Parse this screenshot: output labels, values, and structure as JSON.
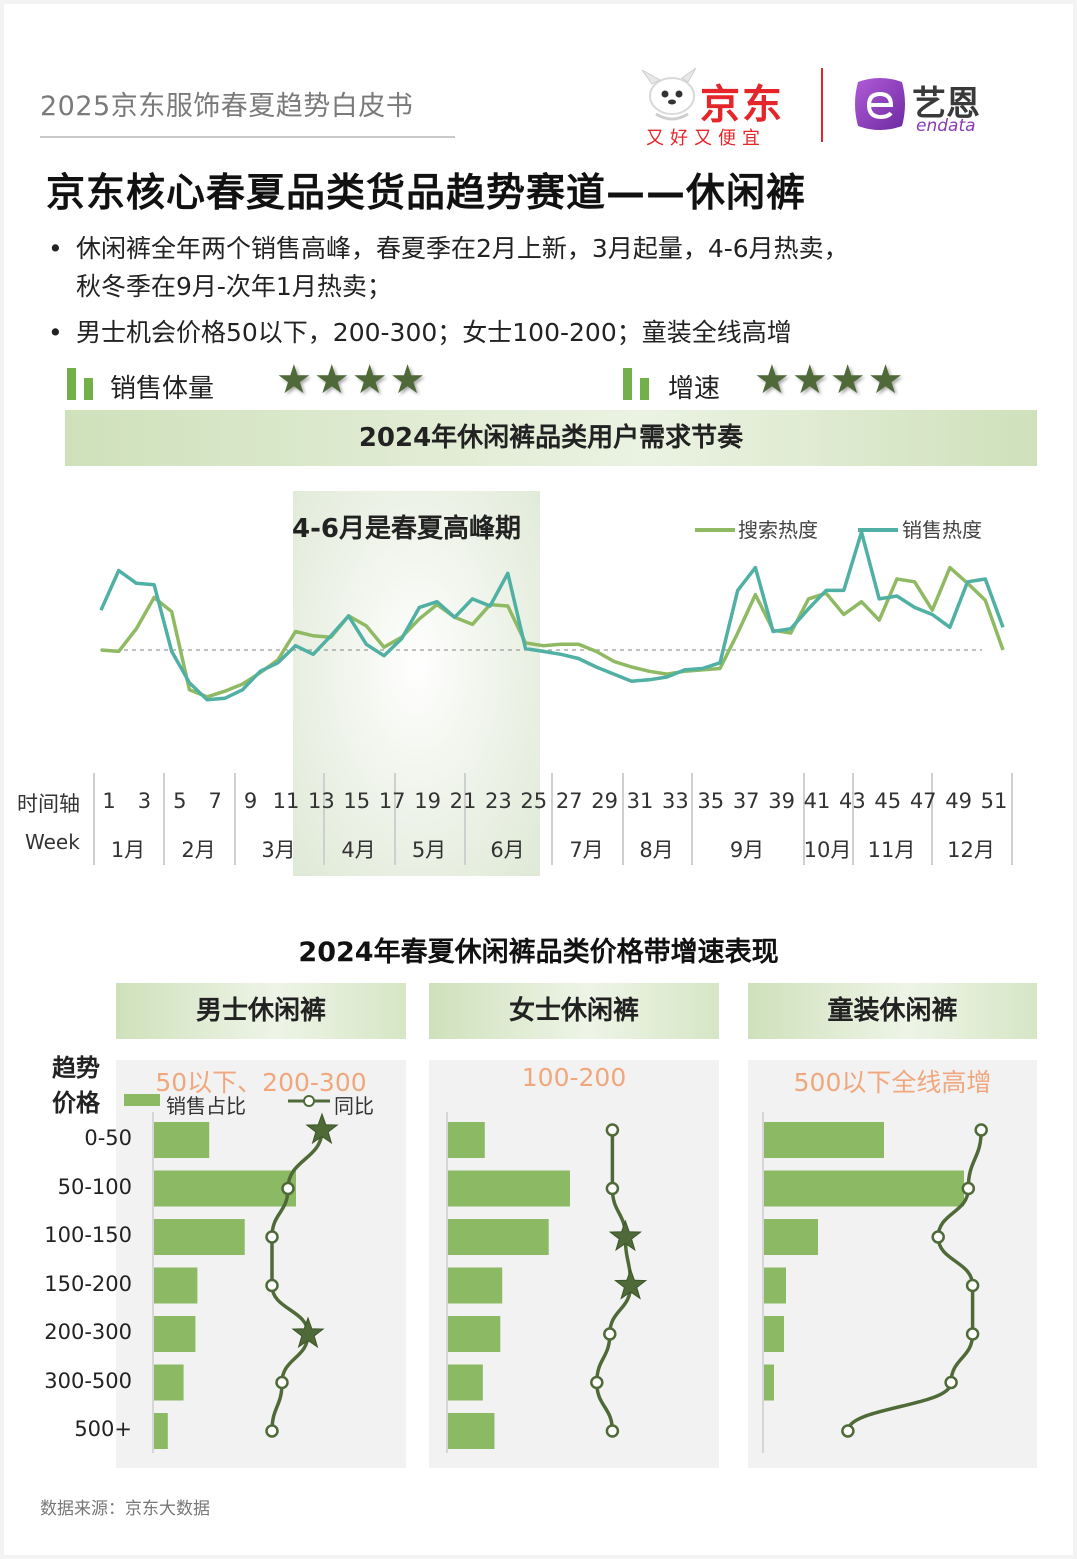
{
  "header": {
    "report_title": "2025京东服饰春夏趋势白皮书",
    "jd_name": "京东",
    "jd_slogan": "又好又便宜",
    "endata_name": "艺恩",
    "endata_sub": "endata"
  },
  "main_title": "京东核心春夏品类货品趋势赛道——休闲裤",
  "bullets": [
    "休闲裤全年两个销售高峰，春夏季在2月上新，3月起量，4-6月热卖，",
    "秋冬季在9月-次年1月热卖；",
    "男士机会价格50以下，200-300；女士100-200；童装全线高增"
  ],
  "ratings": [
    {
      "label": "销售体量",
      "stars": "★★★★",
      "count": 4
    },
    {
      "label": "增速",
      "stars": "★★★★",
      "count": 4
    }
  ],
  "chart1_banner": "2024年休闲裤品类用户需求节奏",
  "chart1_annotation": "4-6月是春夏高峰期",
  "axis": {
    "row_label_1": "时间轴",
    "row_label_2": "Week",
    "week_ticks": [
      "1",
      "3",
      "5",
      "7",
      "9",
      "11",
      "13",
      "15",
      "17",
      "19",
      "21",
      "23",
      "25",
      "27",
      "29",
      "31",
      "33",
      "35",
      "37",
      "39",
      "41",
      "43",
      "45",
      "47",
      "49",
      "51"
    ],
    "months": [
      "1月",
      "2月",
      "3月",
      "4月",
      "5月",
      "6月",
      "7月",
      "8月",
      "9月",
      "10月",
      "11月",
      "12月"
    ]
  },
  "chart2_title": "2024年春夏休闲裤品类价格带增速表现",
  "panel_row_header": [
    "趋势",
    "价格"
  ],
  "price_bands": [
    "0-50",
    "50-100",
    "100-150",
    "150-200",
    "200-300",
    "300-500",
    "500+"
  ],
  "panels": [
    {
      "title": "男士休闲裤",
      "note": "50以下、200-300",
      "legend_bar": "销售占比",
      "legend_line": "同比"
    },
    {
      "title": "女士休闲裤",
      "note": "100-200"
    },
    {
      "title": "童装休闲裤",
      "note": "500以下全线高增"
    }
  ],
  "source": "数据来源：京东大数据",
  "colors": {
    "search": "#8fba63",
    "sales": "#4fb0a3",
    "bar": "#8cba64",
    "line": "#4f6a38",
    "accent_red": "#e4262a",
    "note": "#f0a77d"
  },
  "chart_data": [
    {
      "type": "line",
      "title": "2024年休闲裤品类用户需求节奏",
      "x": [
        1,
        2,
        3,
        4,
        5,
        6,
        7,
        8,
        9,
        10,
        11,
        12,
        13,
        14,
        15,
        16,
        17,
        18,
        19,
        20,
        21,
        22,
        23,
        24,
        25,
        26,
        27,
        28,
        29,
        30,
        31,
        32,
        33,
        34,
        35,
        36,
        37,
        38,
        39,
        40,
        41,
        42,
        43,
        44,
        45,
        46,
        47,
        48,
        49,
        50,
        51,
        52
      ],
      "xlabel": "时间轴 Week",
      "legend": "top-right",
      "series": [
        {
          "name": "搜索热度",
          "values": [
            0,
            -0.1,
            1.5,
            3.7,
            2.7,
            -2.8,
            -3.3,
            -2.9,
            -2.4,
            -1.6,
            -0.7,
            1.3,
            1.0,
            0.9,
            2.4,
            1.7,
            0.2,
            0.9,
            2.2,
            3.2,
            2.3,
            1.8,
            3.2,
            3.1,
            0.5,
            0.3,
            0.4,
            0.4,
            -0.1,
            -0.8,
            -1.2,
            -1.5,
            -1.7,
            -1.5,
            -1.4,
            -1.3,
            1.2,
            3.9,
            1.4,
            1.2,
            3.6,
            4.0,
            2.5,
            3.4,
            2.1,
            5.0,
            4.8,
            2.8,
            5.8,
            4.7,
            3.5,
            0
          ]
        },
        {
          "name": "销售热度",
          "values": [
            2.8,
            5.6,
            4.7,
            4.6,
            -0.1,
            -2.3,
            -3.5,
            -3.4,
            -2.8,
            -1.5,
            -0.9,
            0.3,
            -0.3,
            1.0,
            2.4,
            0.4,
            -0.4,
            0.8,
            3.0,
            3.4,
            2.3,
            3.6,
            3.1,
            5.4,
            0.1,
            -0.1,
            -0.3,
            -0.6,
            -1.2,
            -1.7,
            -2.2,
            -2.1,
            -1.9,
            -1.4,
            -1.3,
            -0.9,
            4.2,
            5.8,
            1.3,
            1.5,
            2.9,
            4.2,
            4.2,
            8.3,
            3.6,
            3.8,
            3.0,
            2.5,
            1.6,
            4.8,
            5.0,
            1.6
          ]
        }
      ]
    },
    {
      "type": "bar",
      "title": "男士休闲裤",
      "categories": [
        "0-50",
        "50-100",
        "100-150",
        "150-200",
        "200-300",
        "300-500",
        "500+"
      ],
      "series": [
        {
          "name": "销售占比",
          "values": [
            28,
            72,
            46,
            22,
            21,
            15,
            7
          ]
        },
        {
          "name": "同比",
          "values": [
            0.86,
            0.69,
            0.61,
            0.61,
            0.79,
            0.66,
            0.61
          ]
        }
      ],
      "highlight": [
        "0-50",
        "200-300"
      ]
    },
    {
      "type": "bar",
      "title": "女士休闲裤",
      "categories": [
        "0-50",
        "50-100",
        "100-150",
        "150-200",
        "200-300",
        "300-500",
        "500+"
      ],
      "series": [
        {
          "name": "销售占比",
          "values": [
            19,
            63,
            52,
            28,
            27,
            18,
            24
          ]
        },
        {
          "name": "同比",
          "values": [
            0.74,
            0.74,
            0.79,
            0.81,
            0.73,
            0.68,
            0.74
          ]
        }
      ],
      "highlight": [
        "100-150",
        "150-200"
      ]
    },
    {
      "type": "bar",
      "title": "童装休闲裤",
      "categories": [
        "0-50",
        "50-100",
        "100-150",
        "150-200",
        "200-300",
        "300-500",
        "500+"
      ],
      "series": [
        {
          "name": "销售占比",
          "values": [
            60,
            100,
            27,
            11,
            10,
            5,
            0
          ]
        },
        {
          "name": "同比",
          "values": [
            0.84,
            0.81,
            0.74,
            0.82,
            0.82,
            0.77,
            0.53
          ]
        }
      ],
      "highlight": []
    }
  ]
}
